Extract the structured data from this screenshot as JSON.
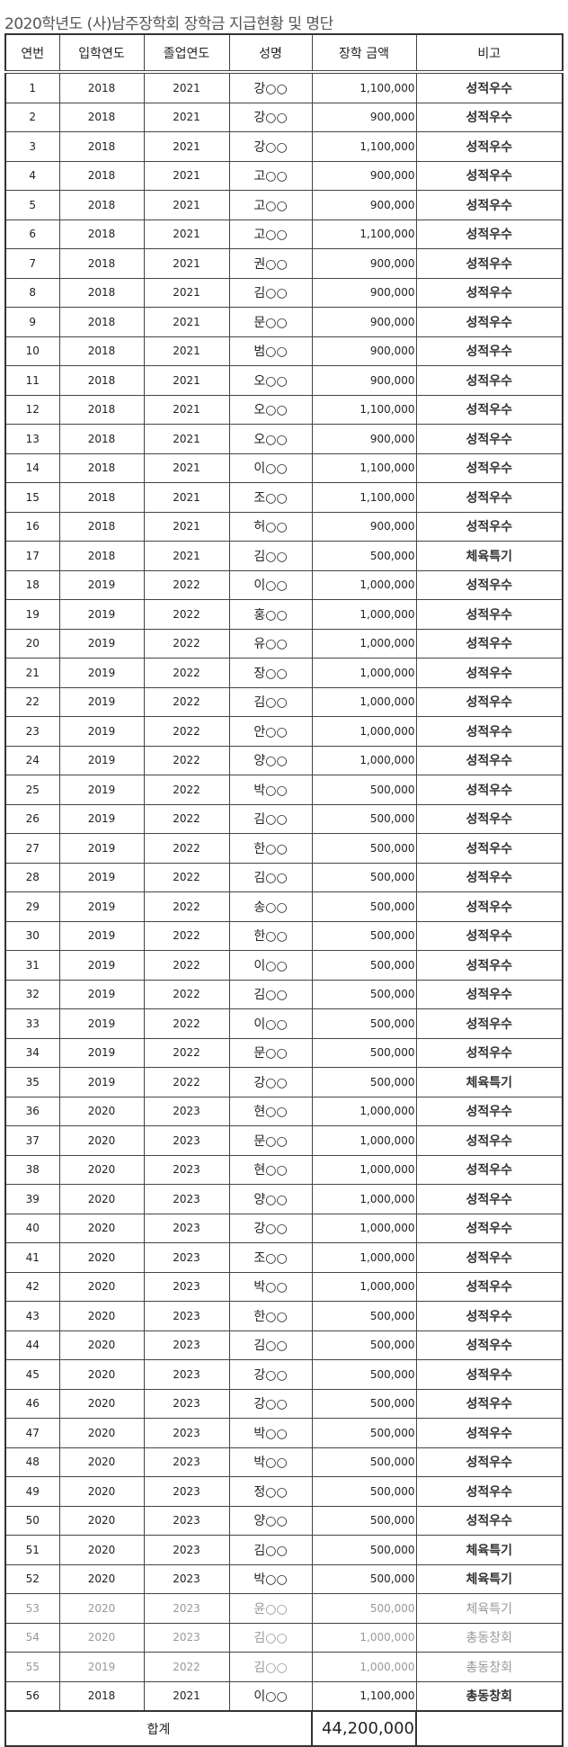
{
  "title": "2020학년도 (사)남주장학회 장학금 지급현황 및 명단",
  "headers": [
    "연번",
    "입학연도",
    "졸업연도",
    "성명",
    "장학 금액",
    "비고"
  ],
  "rows": [
    [
      "1",
      "2018",
      "2021",
      "강○○",
      "1,100,000",
      "성적우수"
    ],
    [
      "2",
      "2018",
      "2021",
      "강○○",
      "900,000",
      "성적우수"
    ],
    [
      "3",
      "2018",
      "2021",
      "강○○",
      "1,100,000",
      "성적우수"
    ],
    [
      "4",
      "2018",
      "2021",
      "고○○",
      "900,000",
      "성적우수"
    ],
    [
      "5",
      "2018",
      "2021",
      "고○○",
      "900,000",
      "성적우수"
    ],
    [
      "6",
      "2018",
      "2021",
      "고○○",
      "1,100,000",
      "성적우수"
    ],
    [
      "7",
      "2018",
      "2021",
      "권○○",
      "900,000",
      "성적우수"
    ],
    [
      "8",
      "2018",
      "2021",
      "김○○",
      "900,000",
      "성적우수"
    ],
    [
      "9",
      "2018",
      "2021",
      "문○○",
      "900,000",
      "성적우수"
    ],
    [
      "10",
      "2018",
      "2021",
      "범○○",
      "900,000",
      "성적우수"
    ],
    [
      "11",
      "2018",
      "2021",
      "오○○",
      "900,000",
      "성적우수"
    ],
    [
      "12",
      "2018",
      "2021",
      "오○○",
      "1,100,000",
      "성적우수"
    ],
    [
      "13",
      "2018",
      "2021",
      "오○○",
      "900,000",
      "성적우수"
    ],
    [
      "14",
      "2018",
      "2021",
      "이○○",
      "1,100,000",
      "성적우수"
    ],
    [
      "15",
      "2018",
      "2021",
      "조○○",
      "1,100,000",
      "성적우수"
    ],
    [
      "16",
      "2018",
      "2021",
      "허○○",
      "900,000",
      "성적우수"
    ],
    [
      "17",
      "2018",
      "2021",
      "김○○",
      "500,000",
      "체육특기"
    ],
    [
      "18",
      "2019",
      "2022",
      "이○○",
      "1,000,000",
      "성적우수"
    ],
    [
      "19",
      "2019",
      "2022",
      "홍○○",
      "1,000,000",
      "성적우수"
    ],
    [
      "20",
      "2019",
      "2022",
      "유○○",
      "1,000,000",
      "성적우수"
    ],
    [
      "21",
      "2019",
      "2022",
      "장○○",
      "1,000,000",
      "성적우수"
    ],
    [
      "22",
      "2019",
      "2022",
      "김○○",
      "1,000,000",
      "성적우수"
    ],
    [
      "23",
      "2019",
      "2022",
      "안○○",
      "1,000,000",
      "성적우수"
    ],
    [
      "24",
      "2019",
      "2022",
      "양○○",
      "1,000,000",
      "성적우수"
    ],
    [
      "25",
      "2019",
      "2022",
      "박○○",
      "500,000",
      "성적우수"
    ],
    [
      "26",
      "2019",
      "2022",
      "김○○",
      "500,000",
      "성적우수"
    ],
    [
      "27",
      "2019",
      "2022",
      "한○○",
      "500,000",
      "성적우수"
    ],
    [
      "28",
      "2019",
      "2022",
      "김○○",
      "500,000",
      "성적우수"
    ],
    [
      "29",
      "2019",
      "2022",
      "송○○",
      "500,000",
      "성적우수"
    ],
    [
      "30",
      "2019",
      "2022",
      "한○○",
      "500,000",
      "성적우수"
    ],
    [
      "31",
      "2019",
      "2022",
      "이○○",
      "500,000",
      "성적우수"
    ],
    [
      "32",
      "2019",
      "2022",
      "김○○",
      "500,000",
      "성적우수"
    ],
    [
      "33",
      "2019",
      "2022",
      "이○○",
      "500,000",
      "성적우수"
    ],
    [
      "34",
      "2019",
      "2022",
      "문○○",
      "500,000",
      "성적우수"
    ],
    [
      "35",
      "2019",
      "2022",
      "강○○",
      "500,000",
      "체육특기"
    ],
    [
      "36",
      "2020",
      "2023",
      "현○○",
      "1,000,000",
      "성적우수"
    ],
    [
      "37",
      "2020",
      "2023",
      "문○○",
      "1,000,000",
      "성적우수"
    ],
    [
      "38",
      "2020",
      "2023",
      "현○○",
      "1,000,000",
      "성적우수"
    ],
    [
      "39",
      "2020",
      "2023",
      "양○○",
      "1,000,000",
      "성적우수"
    ],
    [
      "40",
      "2020",
      "2023",
      "강○○",
      "1,000,000",
      "성적우수"
    ],
    [
      "41",
      "2020",
      "2023",
      "조○○",
      "1,000,000",
      "성적우수"
    ],
    [
      "42",
      "2020",
      "2023",
      "박○○",
      "1,000,000",
      "성적우수"
    ],
    [
      "43",
      "2020",
      "2023",
      "한○○",
      "500,000",
      "성적우수"
    ],
    [
      "44",
      "2020",
      "2023",
      "김○○",
      "500,000",
      "성적우수"
    ],
    [
      "45",
      "2020",
      "2023",
      "강○○",
      "500,000",
      "성적우수"
    ],
    [
      "46",
      "2020",
      "2023",
      "강○○",
      "500,000",
      "성적우수"
    ],
    [
      "47",
      "2020",
      "2023",
      "박○○",
      "500,000",
      "성적우수"
    ],
    [
      "48",
      "2020",
      "2023",
      "박○○",
      "500,000",
      "성적우수"
    ],
    [
      "49",
      "2020",
      "2023",
      "정○○",
      "500,000",
      "성적우수"
    ],
    [
      "50",
      "2020",
      "2023",
      "양○○",
      "500,000",
      "성적우수"
    ],
    [
      "51",
      "2020",
      "2023",
      "김○○",
      "500,000",
      "체육특기"
    ],
    [
      "52",
      "2020",
      "2023",
      "박○○",
      "500,000",
      "체육특기"
    ],
    [
      "53",
      "2020",
      "2023",
      "윤○○",
      "500,000",
      "체육특기"
    ],
    [
      "54",
      "2020",
      "2023",
      "김○○",
      "1,000,000",
      "총동창회"
    ],
    [
      "55",
      "2019",
      "2022",
      "김○○",
      "1,000,000",
      "총동창회"
    ],
    [
      "56",
      "2018",
      "2021",
      "이○○",
      "1,100,000",
      "총동창회"
    ]
  ],
  "gray_rows": [
    "53",
    "54",
    "55"
  ],
  "total": {
    "label": "합계",
    "amount": "44,200,000"
  }
}
